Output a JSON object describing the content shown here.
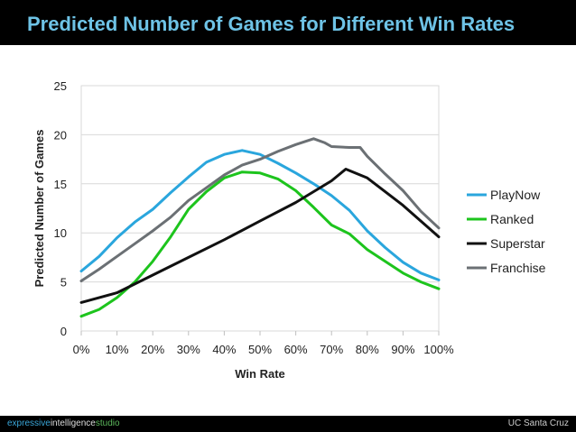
{
  "slide": {
    "title": "Predicted Number of Games for Different Win Rates",
    "footer_brand_1": "expressive",
    "footer_brand_2": "intelligence",
    "footer_brand_3": "studio",
    "footer_institution": "UC Santa Cruz"
  },
  "chart_data": {
    "type": "line",
    "title": "",
    "xlabel": "Win Rate",
    "ylabel": "Predicted Number of Games",
    "xlim": [
      0,
      100
    ],
    "ylim": [
      0,
      25
    ],
    "x_ticks": [
      "0%",
      "10%",
      "20%",
      "30%",
      "40%",
      "50%",
      "60%",
      "70%",
      "80%",
      "90%",
      "100%"
    ],
    "y_ticks": [
      "0",
      "5",
      "10",
      "15",
      "20",
      "25"
    ],
    "grid": true,
    "legend_position": "right",
    "series": [
      {
        "name": "PlayNow",
        "color": "#2aa6dd",
        "x": [
          0,
          5,
          10,
          15,
          20,
          25,
          30,
          35,
          40,
          45,
          50,
          55,
          60,
          65,
          70,
          75,
          80,
          85,
          90,
          95,
          100
        ],
        "y": [
          6.1,
          7.6,
          9.5,
          11.1,
          12.4,
          14.1,
          15.7,
          17.2,
          18.0,
          18.4,
          18.0,
          17.1,
          16.1,
          15.0,
          13.8,
          12.3,
          10.2,
          8.5,
          7.0,
          5.9,
          5.2
        ]
      },
      {
        "name": "Ranked",
        "color": "#1dc41d",
        "x": [
          0,
          5,
          10,
          15,
          20,
          25,
          30,
          35,
          40,
          45,
          50,
          55,
          60,
          65,
          70,
          75,
          80,
          85,
          90,
          95,
          100
        ],
        "y": [
          1.5,
          2.2,
          3.4,
          5.0,
          7.1,
          9.6,
          12.4,
          14.2,
          15.6,
          16.2,
          16.1,
          15.5,
          14.3,
          12.6,
          10.8,
          9.9,
          8.3,
          7.1,
          5.9,
          5.0,
          4.3
        ]
      },
      {
        "name": "Superstar",
        "color": "#111111",
        "x": [
          0,
          10,
          20,
          30,
          40,
          50,
          60,
          70,
          74,
          80,
          90,
          100
        ],
        "y": [
          2.9,
          3.9,
          5.7,
          7.5,
          9.3,
          11.2,
          13.1,
          15.3,
          16.5,
          15.6,
          12.8,
          9.6
        ]
      },
      {
        "name": "Franchise",
        "color": "#6b7074",
        "x": [
          0,
          5,
          10,
          15,
          20,
          25,
          30,
          35,
          40,
          45,
          50,
          55,
          60,
          65,
          68,
          70,
          75,
          78,
          80,
          85,
          90,
          95,
          100
        ],
        "y": [
          5.1,
          6.3,
          7.6,
          8.9,
          10.2,
          11.6,
          13.3,
          14.6,
          15.9,
          16.9,
          17.5,
          18.3,
          19.0,
          19.6,
          19.2,
          18.8,
          18.7,
          18.7,
          17.8,
          16.0,
          14.3,
          12.2,
          10.5
        ]
      }
    ]
  }
}
